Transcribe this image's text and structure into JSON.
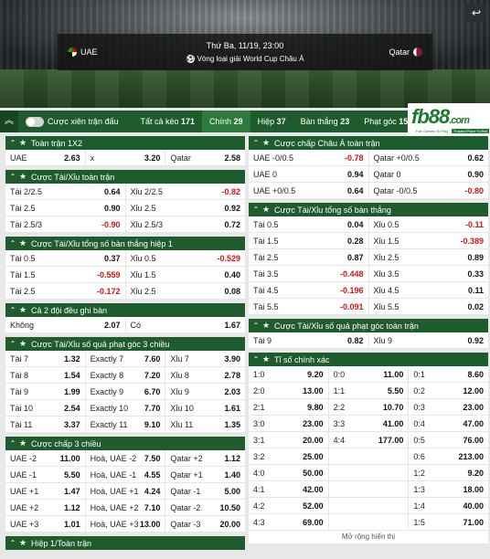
{
  "header": {
    "date": "Thứ Ba, 11/19, 23:00",
    "league": "Vòng loại giải World Cup Châu Á",
    "home": "UAE",
    "away": "Qatar",
    "back_icon": "↩"
  },
  "tabs": {
    "toggle_label": "Cược xiên trận đấu",
    "items": [
      {
        "label": "Tất cả kèo",
        "count": "171"
      },
      {
        "label": "Chính",
        "count": "29"
      },
      {
        "label": "Hiệp",
        "count": "37"
      },
      {
        "label": "Bàn thắng",
        "count": "23"
      },
      {
        "label": "Phạt góc",
        "count": "15"
      }
    ]
  },
  "logo": {
    "text": "fb88",
    "suffix": ".com",
    "tag1": "Fair Games To Play",
    "tag2": "Trusted Place To Bet"
  },
  "left": [
    {
      "title": "Toàn trận 1X2",
      "rows": [
        [
          [
            "UAE",
            "2.63"
          ],
          [
            "x",
            "3.20"
          ],
          [
            "Qatar",
            "2.58"
          ]
        ]
      ]
    },
    {
      "title": "Cược Tài/Xỉu toàn trận",
      "rows": [
        [
          [
            "Tài 2/2.5",
            "0.64"
          ],
          [
            "Xỉu 2/2.5",
            "-0.82"
          ]
        ],
        [
          [
            "Tài 2.5",
            "0.90"
          ],
          [
            "Xỉu 2.5",
            "0.92"
          ]
        ],
        [
          [
            "Tài 2.5/3",
            "-0.90"
          ],
          [
            "Xỉu 2.5/3",
            "0.72"
          ]
        ]
      ]
    },
    {
      "title": "Cược Tài/Xỉu tổng số bàn thắng hiệp 1",
      "rows": [
        [
          [
            "Tài 0.5",
            "0.37"
          ],
          [
            "Xỉu 0.5",
            "-0.529"
          ]
        ],
        [
          [
            "Tài 1.5",
            "-0.559"
          ],
          [
            "Xỉu 1.5",
            "0.40"
          ]
        ],
        [
          [
            "Tài 2.5",
            "-0.172"
          ],
          [
            "Xỉu 2.5",
            "0.08"
          ]
        ]
      ]
    },
    {
      "title": "Cả 2 đội đều ghi bàn",
      "rows": [
        [
          [
            "Không",
            "2.07"
          ],
          [
            "Có",
            "1.67"
          ]
        ]
      ]
    },
    {
      "title": "Cược Tài/Xỉu số quả phạt góc 3 chiều",
      "rows": [
        [
          [
            "Tài 7",
            "1.32"
          ],
          [
            "Exactly 7",
            "7.60"
          ],
          [
            "Xỉu 7",
            "3.90"
          ]
        ],
        [
          [
            "Tài 8",
            "1.54"
          ],
          [
            "Exactly 8",
            "7.20"
          ],
          [
            "Xỉu 8",
            "2.78"
          ]
        ],
        [
          [
            "Tài 9",
            "1.99"
          ],
          [
            "Exactly 9",
            "6.70"
          ],
          [
            "Xỉu 9",
            "2.03"
          ]
        ],
        [
          [
            "Tài 10",
            "2.54"
          ],
          [
            "Exactly 10",
            "7.70"
          ],
          [
            "Xỉu 10",
            "1.61"
          ]
        ],
        [
          [
            "Tài 11",
            "3.37"
          ],
          [
            "Exactly 11",
            "9.10"
          ],
          [
            "Xỉu 11",
            "1.35"
          ]
        ]
      ]
    },
    {
      "title": "Cược chấp 3 chiều",
      "rows": [
        [
          [
            "UAE -2",
            "11.00"
          ],
          [
            "Hoà, UAE -2",
            "7.50"
          ],
          [
            "Qatar +2",
            "1.12"
          ]
        ],
        [
          [
            "UAE -1",
            "5.50"
          ],
          [
            "Hoà, UAE -1",
            "4.55"
          ],
          [
            "Qatar +1",
            "1.40"
          ]
        ],
        [
          [
            "UAE +1",
            "1.47"
          ],
          [
            "Hoà, UAE +1",
            "4.24"
          ],
          [
            "Qatar -1",
            "5.00"
          ]
        ],
        [
          [
            "UAE +2",
            "1.12"
          ],
          [
            "Hoà, UAE +2",
            "7.10"
          ],
          [
            "Qatar -2",
            "10.50"
          ]
        ],
        [
          [
            "UAE +3",
            "1.01"
          ],
          [
            "Hoà, UAE +3",
            "13.00"
          ],
          [
            "Qatar -3",
            "20.00"
          ]
        ]
      ]
    },
    {
      "title": "Hiệp 1/Toàn trận",
      "rows": []
    }
  ],
  "right": [
    {
      "title": "Cược chấp Châu Á toàn trận",
      "rows": [
        [
          [
            "UAE -0/0.5",
            "-0.78"
          ],
          [
            "Qatar +0/0.5",
            "0.62"
          ]
        ],
        [
          [
            "UAE 0",
            "0.94"
          ],
          [
            "Qatar 0",
            "0.90"
          ]
        ],
        [
          [
            "UAE +0/0.5",
            "0.64"
          ],
          [
            "Qatar -0/0.5",
            "-0.80"
          ]
        ]
      ]
    },
    {
      "title": "Cược Tài/Xỉu tổng số bàn thắng",
      "rows": [
        [
          [
            "Tài 0.5",
            "0.04"
          ],
          [
            "Xỉu 0.5",
            "-0.11"
          ]
        ],
        [
          [
            "Tài 1.5",
            "0.28"
          ],
          [
            "Xỉu 1.5",
            "-0.389"
          ]
        ],
        [
          [
            "Tài 2.5",
            "0.87"
          ],
          [
            "Xỉu 2.5",
            "0.89"
          ]
        ],
        [
          [
            "Tài 3.5",
            "-0.448"
          ],
          [
            "Xỉu 3.5",
            "0.33"
          ]
        ],
        [
          [
            "Tài 4.5",
            "-0.196"
          ],
          [
            "Xỉu 4.5",
            "0.11"
          ]
        ],
        [
          [
            "Tài 5.5",
            "-0.091"
          ],
          [
            "Xỉu 5.5",
            "0.02"
          ]
        ]
      ]
    },
    {
      "title": "Cược Tài/Xỉu số quả phạt góc toàn trận",
      "rows": [
        [
          [
            "Tài 9",
            "0.82"
          ],
          [
            "Xỉu 9",
            "0.92"
          ]
        ]
      ]
    },
    {
      "title": "Tỉ số chính xác",
      "rows": [
        [
          [
            "1:0",
            "9.20"
          ],
          [
            "0:0",
            "11.00"
          ],
          [
            "0:1",
            "8.60"
          ]
        ],
        [
          [
            "2:0",
            "13.00"
          ],
          [
            "1:1",
            "5.50"
          ],
          [
            "0:2",
            "12.00"
          ]
        ],
        [
          [
            "2:1",
            "9.80"
          ],
          [
            "2:2",
            "10.70"
          ],
          [
            "0:3",
            "23.00"
          ]
        ],
        [
          [
            "3:0",
            "23.00"
          ],
          [
            "3:3",
            "41.00"
          ],
          [
            "0:4",
            "47.00"
          ]
        ],
        [
          [
            "3:1",
            "20.00"
          ],
          [
            "4:4",
            "177.00"
          ],
          [
            "0:5",
            "76.00"
          ]
        ],
        [
          [
            "3:2",
            "25.00"
          ],
          [
            "",
            ""
          ],
          [
            "0:6",
            "213.00"
          ]
        ],
        [
          [
            "4:0",
            "50.00"
          ],
          [
            "",
            ""
          ],
          [
            "1:2",
            "9.20"
          ]
        ],
        [
          [
            "4:1",
            "42.00"
          ],
          [
            "",
            ""
          ],
          [
            "1:3",
            "18.00"
          ]
        ],
        [
          [
            "4:2",
            "52.00"
          ],
          [
            "",
            ""
          ],
          [
            "1:4",
            "40.00"
          ]
        ],
        [
          [
            "4:3",
            "69.00"
          ],
          [
            "",
            ""
          ],
          [
            "1:5",
            "71.00"
          ]
        ]
      ],
      "more": "Mở rộng hiển thị"
    }
  ]
}
